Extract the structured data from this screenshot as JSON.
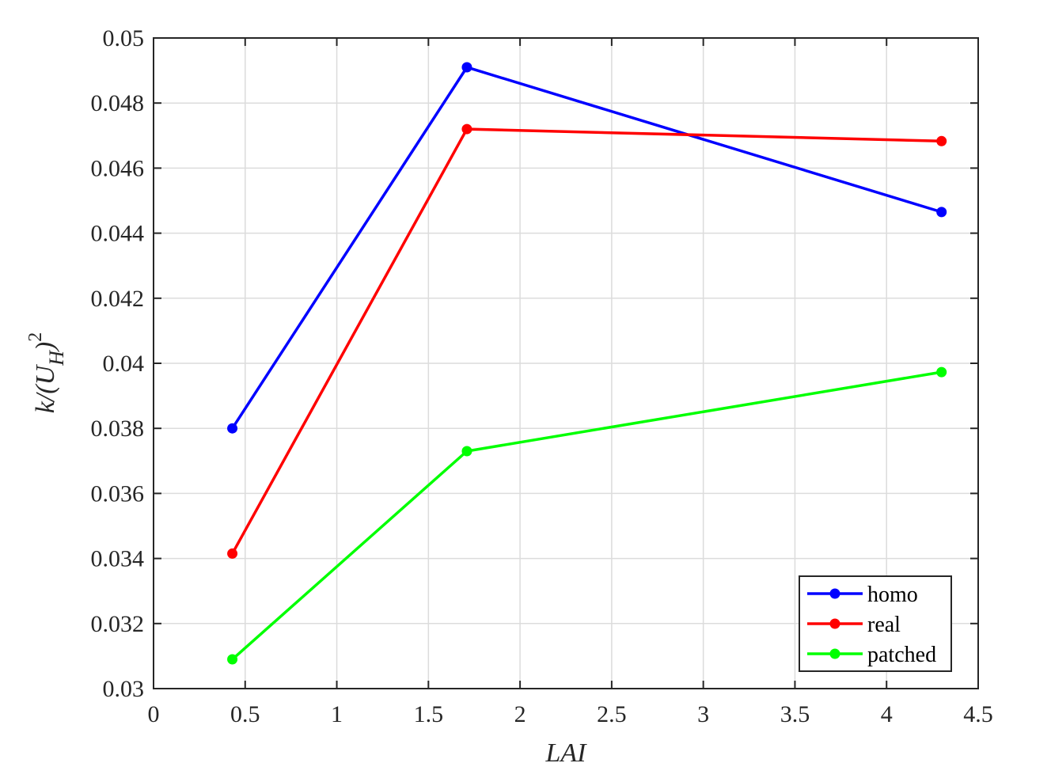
{
  "chart_data": {
    "type": "line",
    "title": "",
    "xlabel": "LAI",
    "ylabel": {
      "main": "k/(U",
      "subscript": "H",
      "close": ")",
      "superscript": "2"
    },
    "xlim": [
      0,
      4.5
    ],
    "ylim": [
      0.03,
      0.05
    ],
    "xticks": [
      0,
      0.5,
      1,
      1.5,
      2,
      2.5,
      3,
      3.5,
      4,
      4.5
    ],
    "xtick_labels": [
      "0",
      "0.5",
      "1",
      "1.5",
      "2",
      "2.5",
      "3",
      "3.5",
      "4",
      "4.5"
    ],
    "yticks": [
      0.03,
      0.032,
      0.034,
      0.036,
      0.038,
      0.04,
      0.042,
      0.044,
      0.046,
      0.048,
      0.05
    ],
    "ytick_labels": [
      "0.03",
      "0.032",
      "0.034",
      "0.036",
      "0.038",
      "0.04",
      "0.042",
      "0.044",
      "0.046",
      "0.048",
      "0.05"
    ],
    "grid": true,
    "legend_position": "bottom-right",
    "x": [
      0.43,
      1.71,
      4.3
    ],
    "series": [
      {
        "name": "homo",
        "color": "#0000ff",
        "values": [
          0.038,
          0.0491,
          0.04465
        ]
      },
      {
        "name": "real",
        "color": "#ff0000",
        "values": [
          0.03415,
          0.0472,
          0.04683
        ]
      },
      {
        "name": "patched",
        "color": "#00ff00",
        "values": [
          0.0309,
          0.0373,
          0.03973
        ]
      }
    ]
  }
}
